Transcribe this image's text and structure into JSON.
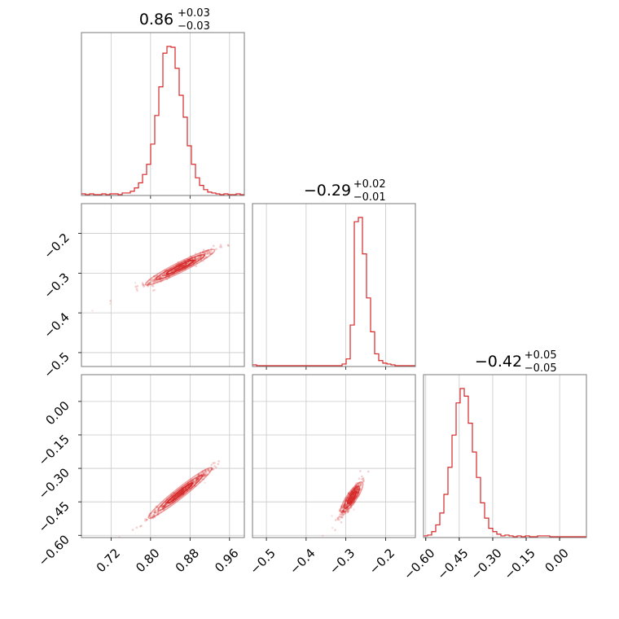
{
  "chart_data": {
    "type": "corner",
    "color": "#d62728",
    "parameters": [
      {
        "title_main": "0.86",
        "title_sup": "+0.03",
        "title_sub": "−0.03",
        "median": 0.86,
        "range": [
          0.66,
          0.99
        ],
        "ticks": [
          0.72,
          0.8,
          0.88,
          0.96
        ],
        "tick_labels": [
          "0.72",
          "0.80",
          "0.88",
          "0.96"
        ]
      },
      {
        "title_main": "−0.29",
        "title_sup": "+0.02",
        "title_sub": "−0.01",
        "median": -0.29,
        "range": [
          -0.535,
          -0.125
        ],
        "ticks": [
          -0.5,
          -0.4,
          -0.3,
          -0.2
        ],
        "tick_labels": [
          "−0.5",
          "−0.4",
          "−0.3",
          "−0.2"
        ]
      },
      {
        "title_main": "−0.42",
        "title_sup": "+0.05",
        "title_sub": "−0.05",
        "median": -0.42,
        "range": [
          -0.61,
          0.12
        ],
        "ticks": [
          -0.6,
          -0.45,
          -0.3,
          -0.15,
          0.0
        ],
        "tick_labels": [
          "−0.60",
          "−0.45",
          "−0.30",
          "−0.15",
          "0.00"
        ]
      }
    ],
    "histograms": [
      {
        "edges_range": [
          0.66,
          0.99
        ],
        "counts": [
          1,
          0,
          1,
          0,
          0,
          1,
          0,
          1,
          1,
          0,
          2,
          2,
          4,
          8,
          14,
          24,
          36,
          60,
          94,
          128,
          168,
          176,
          175,
          150,
          118,
          92,
          58,
          36,
          20,
          11,
          6,
          3,
          2,
          1,
          0,
          1,
          0,
          0,
          1,
          0
        ]
      },
      {
        "edges_range": [
          -0.535,
          -0.125
        ],
        "counts": [
          1,
          0,
          0,
          0,
          0,
          0,
          0,
          0,
          0,
          0,
          0,
          0,
          0,
          0,
          0,
          0,
          0,
          0,
          0,
          0,
          0,
          0,
          2,
          8,
          48,
          170,
          175,
          132,
          80,
          40,
          14,
          6,
          3,
          2,
          1,
          0,
          0,
          0,
          0,
          0
        ]
      },
      {
        "edges_range": [
          -0.61,
          0.12
        ],
        "counts": [
          1,
          2,
          6,
          14,
          28,
          50,
          82,
          120,
          158,
          175,
          166,
          134,
          100,
          70,
          40,
          22,
          10,
          6,
          3,
          1,
          2,
          1,
          0,
          1,
          0,
          1,
          0,
          0,
          1,
          1,
          1,
          0,
          0,
          0,
          0,
          0,
          0,
          0,
          0,
          0
        ]
      }
    ],
    "grid": true
  }
}
